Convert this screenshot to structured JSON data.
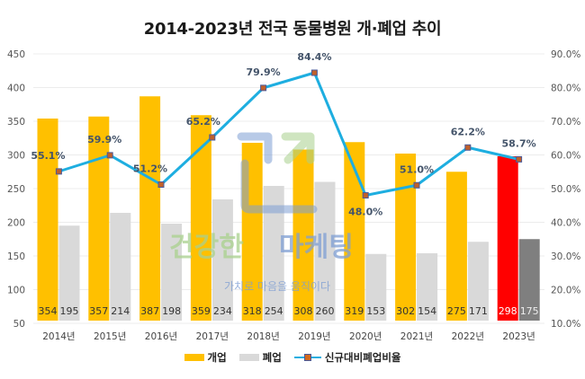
{
  "chart_data": {
    "type": "bar",
    "title": "2014-2023년 전국 동물병원 개·폐업 추이",
    "categories": [
      "2014년",
      "2015년",
      "2016년",
      "2017년",
      "2018년",
      "2019년",
      "2020년",
      "2021년",
      "2022년",
      "2023년"
    ],
    "series": [
      {
        "name": "개업",
        "type": "bar",
        "axis": "left",
        "color": "#ffc000",
        "highlight_color": "#ff0000",
        "values": [
          354,
          357,
          387,
          359,
          318,
          308,
          319,
          302,
          275,
          298
        ]
      },
      {
        "name": "폐업",
        "type": "bar",
        "axis": "left",
        "color": "#d9d9d9",
        "highlight_color": "#7f7f7f",
        "values": [
          195,
          214,
          198,
          234,
          254,
          260,
          153,
          154,
          171,
          175
        ]
      },
      {
        "name": "신규대비폐업비율",
        "type": "line",
        "axis": "right",
        "color": "#1eaee0",
        "marker_color": "#c0602a",
        "values": [
          55.1,
          59.9,
          51.2,
          65.2,
          79.9,
          84.4,
          48.0,
          51.0,
          62.2,
          58.7
        ],
        "labels": [
          "55.1%",
          "59.9%",
          "51.2%",
          "65.2%",
          "79.9%",
          "84.4%",
          "48.0%",
          "51.0%",
          "62.2%",
          "58.7%"
        ]
      }
    ],
    "yleft": {
      "ylim": [
        50,
        450
      ],
      "ticks": [
        "450",
        "400",
        "350",
        "300",
        "250",
        "200",
        "150",
        "100",
        "50"
      ]
    },
    "yright": {
      "ylim": [
        10,
        90
      ],
      "ticks": [
        "90.0%",
        "80.0%",
        "70.0%",
        "60.0%",
        "50.0%",
        "40.0%",
        "30.0%",
        "20.0%",
        "10.0%"
      ]
    },
    "grid": true,
    "legend": "bottom",
    "highlight_category": "2023년"
  },
  "watermark": {
    "brand_part1": "건강한",
    "brand_part2": "마케팅",
    "slogan": "가치로 마음을 움직이다"
  }
}
